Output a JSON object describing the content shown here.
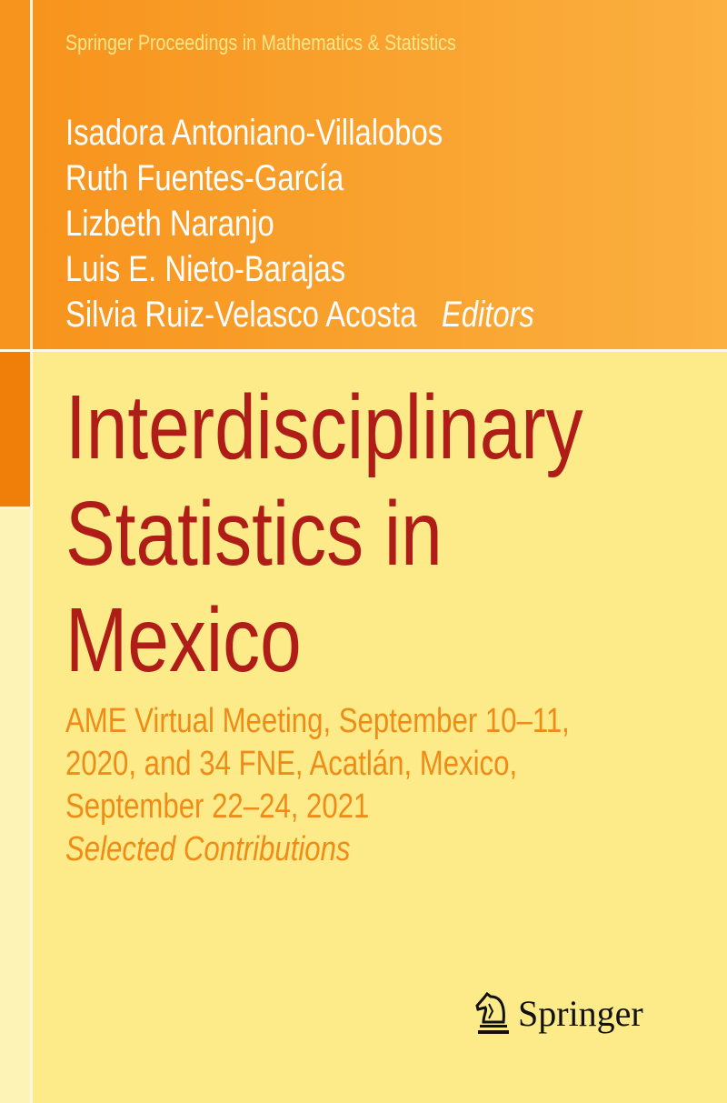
{
  "series": "Springer Proceedings in Mathematics & Statistics",
  "editors": [
    "Isadora Antoniano-Villalobos",
    "Ruth Fuentes-García",
    "Lizbeth Naranjo",
    "Luis E. Nieto-Barajas",
    "Silvia Ruiz-Velasco Acosta"
  ],
  "editors_label": "Editors",
  "title": [
    "Interdisciplinary",
    "Statistics in",
    "Mexico"
  ],
  "subtitle": [
    "AME Virtual Meeting, September 10–11,",
    "2020, and 34 FNE, Acatlán, Mexico,",
    "September 22–24, 2021"
  ],
  "subtitle_note": "Selected Contributions",
  "publisher": "Springer",
  "colors": {
    "band": "#f7941d",
    "background": "#fdeb8a",
    "title": "#b01c17",
    "subtitle": "#ef8c18"
  }
}
